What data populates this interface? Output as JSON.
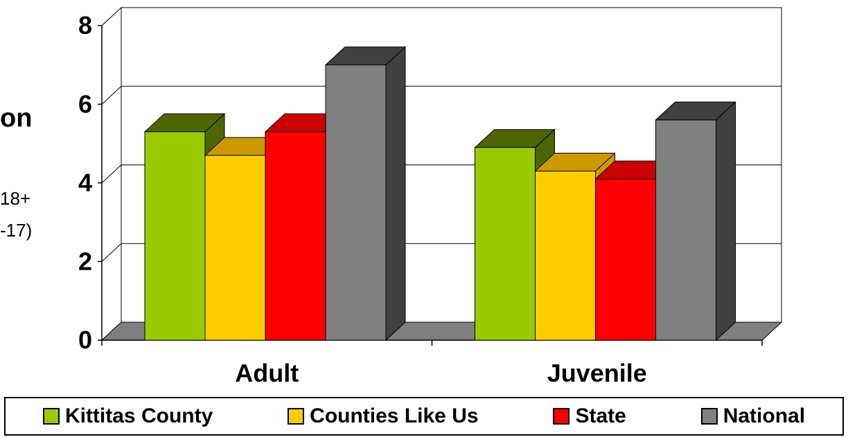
{
  "fragments": {
    "left_title": "on",
    "left_note_1": "18+",
    "left_note_2": "-17)"
  },
  "chart_data": {
    "type": "bar",
    "categories": [
      "Adult",
      "Juvenile"
    ],
    "series": [
      {
        "name": "Kittitas County",
        "values": [
          5.3,
          4.9
        ],
        "color": "#99CC00"
      },
      {
        "name": "Counties Like Us",
        "values": [
          4.7,
          4.3
        ],
        "color": "#FFCC00"
      },
      {
        "name": "State",
        "values": [
          5.3,
          4.1
        ],
        "color": "#FF0000"
      },
      {
        "name": "National",
        "values": [
          7.0,
          5.6
        ],
        "color": "#808080"
      }
    ],
    "yticks": [
      "0",
      "2",
      "4",
      "6",
      "8"
    ],
    "ylim": [
      0,
      8
    ],
    "grid": true,
    "legend_position": "bottom",
    "style": "3d"
  }
}
